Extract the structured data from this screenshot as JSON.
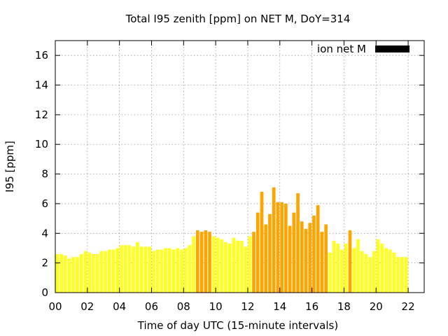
{
  "chart_data": {
    "type": "bar",
    "title": "Total I95 zenith [ppm] on NET M, DoY=314",
    "xlabel": "Time of day UTC (15-minute intervals)",
    "ylabel": "I95 [ppm]",
    "xlim": [
      0,
      23
    ],
    "ylim": [
      0,
      17
    ],
    "x_ticks": [
      "00",
      "02",
      "04",
      "06",
      "08",
      "10",
      "12",
      "14",
      "16",
      "18",
      "20",
      "22"
    ],
    "x_tick_values": [
      0,
      2,
      4,
      6,
      8,
      10,
      12,
      14,
      16,
      18,
      20,
      22
    ],
    "y_ticks": [
      "0",
      "2",
      "4",
      "6",
      "8",
      "10",
      "12",
      "14",
      "16"
    ],
    "y_tick_values": [
      0,
      2,
      4,
      6,
      8,
      10,
      12,
      14,
      16
    ],
    "grid": true,
    "legend": {
      "label": "ion net M",
      "position": "top-right",
      "color": "#000000"
    },
    "bar_interval_hours": 0.25,
    "colors": {
      "low": "#ffff20",
      "moderate": "#ffa500"
    },
    "values": [
      2.6,
      2.6,
      2.5,
      2.3,
      2.4,
      2.4,
      2.6,
      2.8,
      2.7,
      2.6,
      2.6,
      2.8,
      2.8,
      2.9,
      2.9,
      3.0,
      3.2,
      3.2,
      3.2,
      3.1,
      3.4,
      3.1,
      3.1,
      3.1,
      2.8,
      2.9,
      2.9,
      3.0,
      3.0,
      2.9,
      3.0,
      2.9,
      3.0,
      3.2,
      3.8,
      4.2,
      4.1,
      4.2,
      4.1,
      3.8,
      3.7,
      3.6,
      3.4,
      3.3,
      3.7,
      3.5,
      3.5,
      3.1,
      3.8,
      4.1,
      5.4,
      6.8,
      4.6,
      5.3,
      7.1,
      6.1,
      6.1,
      6.0,
      4.5,
      5.4,
      6.7,
      4.8,
      4.3,
      4.7,
      5.2,
      5.9,
      4.1,
      4.6,
      2.7,
      3.5,
      3.3,
      2.9,
      3.3,
      4.2,
      3.0,
      3.6,
      2.8,
      2.6,
      2.4,
      2.8,
      3.6,
      3.3,
      3.0,
      2.9,
      2.7,
      2.4,
      2.4,
      2.4
    ],
    "levels": [
      "low",
      "low",
      "low",
      "low",
      "low",
      "low",
      "low",
      "low",
      "low",
      "low",
      "low",
      "low",
      "low",
      "low",
      "low",
      "low",
      "low",
      "low",
      "low",
      "low",
      "low",
      "low",
      "low",
      "low",
      "low",
      "low",
      "low",
      "low",
      "low",
      "low",
      "low",
      "low",
      "low",
      "low",
      "low",
      "moderate",
      "moderate",
      "moderate",
      "moderate",
      "low",
      "low",
      "low",
      "low",
      "low",
      "low",
      "low",
      "low",
      "low",
      "low",
      "moderate",
      "moderate",
      "moderate",
      "moderate",
      "moderate",
      "moderate",
      "moderate",
      "moderate",
      "moderate",
      "moderate",
      "moderate",
      "moderate",
      "moderate",
      "moderate",
      "moderate",
      "moderate",
      "moderate",
      "moderate",
      "moderate",
      "low",
      "low",
      "low",
      "low",
      "low",
      "moderate",
      "low",
      "low",
      "low",
      "low",
      "low",
      "low",
      "low",
      "low",
      "low",
      "low",
      "low",
      "low",
      "low",
      "low"
    ]
  }
}
